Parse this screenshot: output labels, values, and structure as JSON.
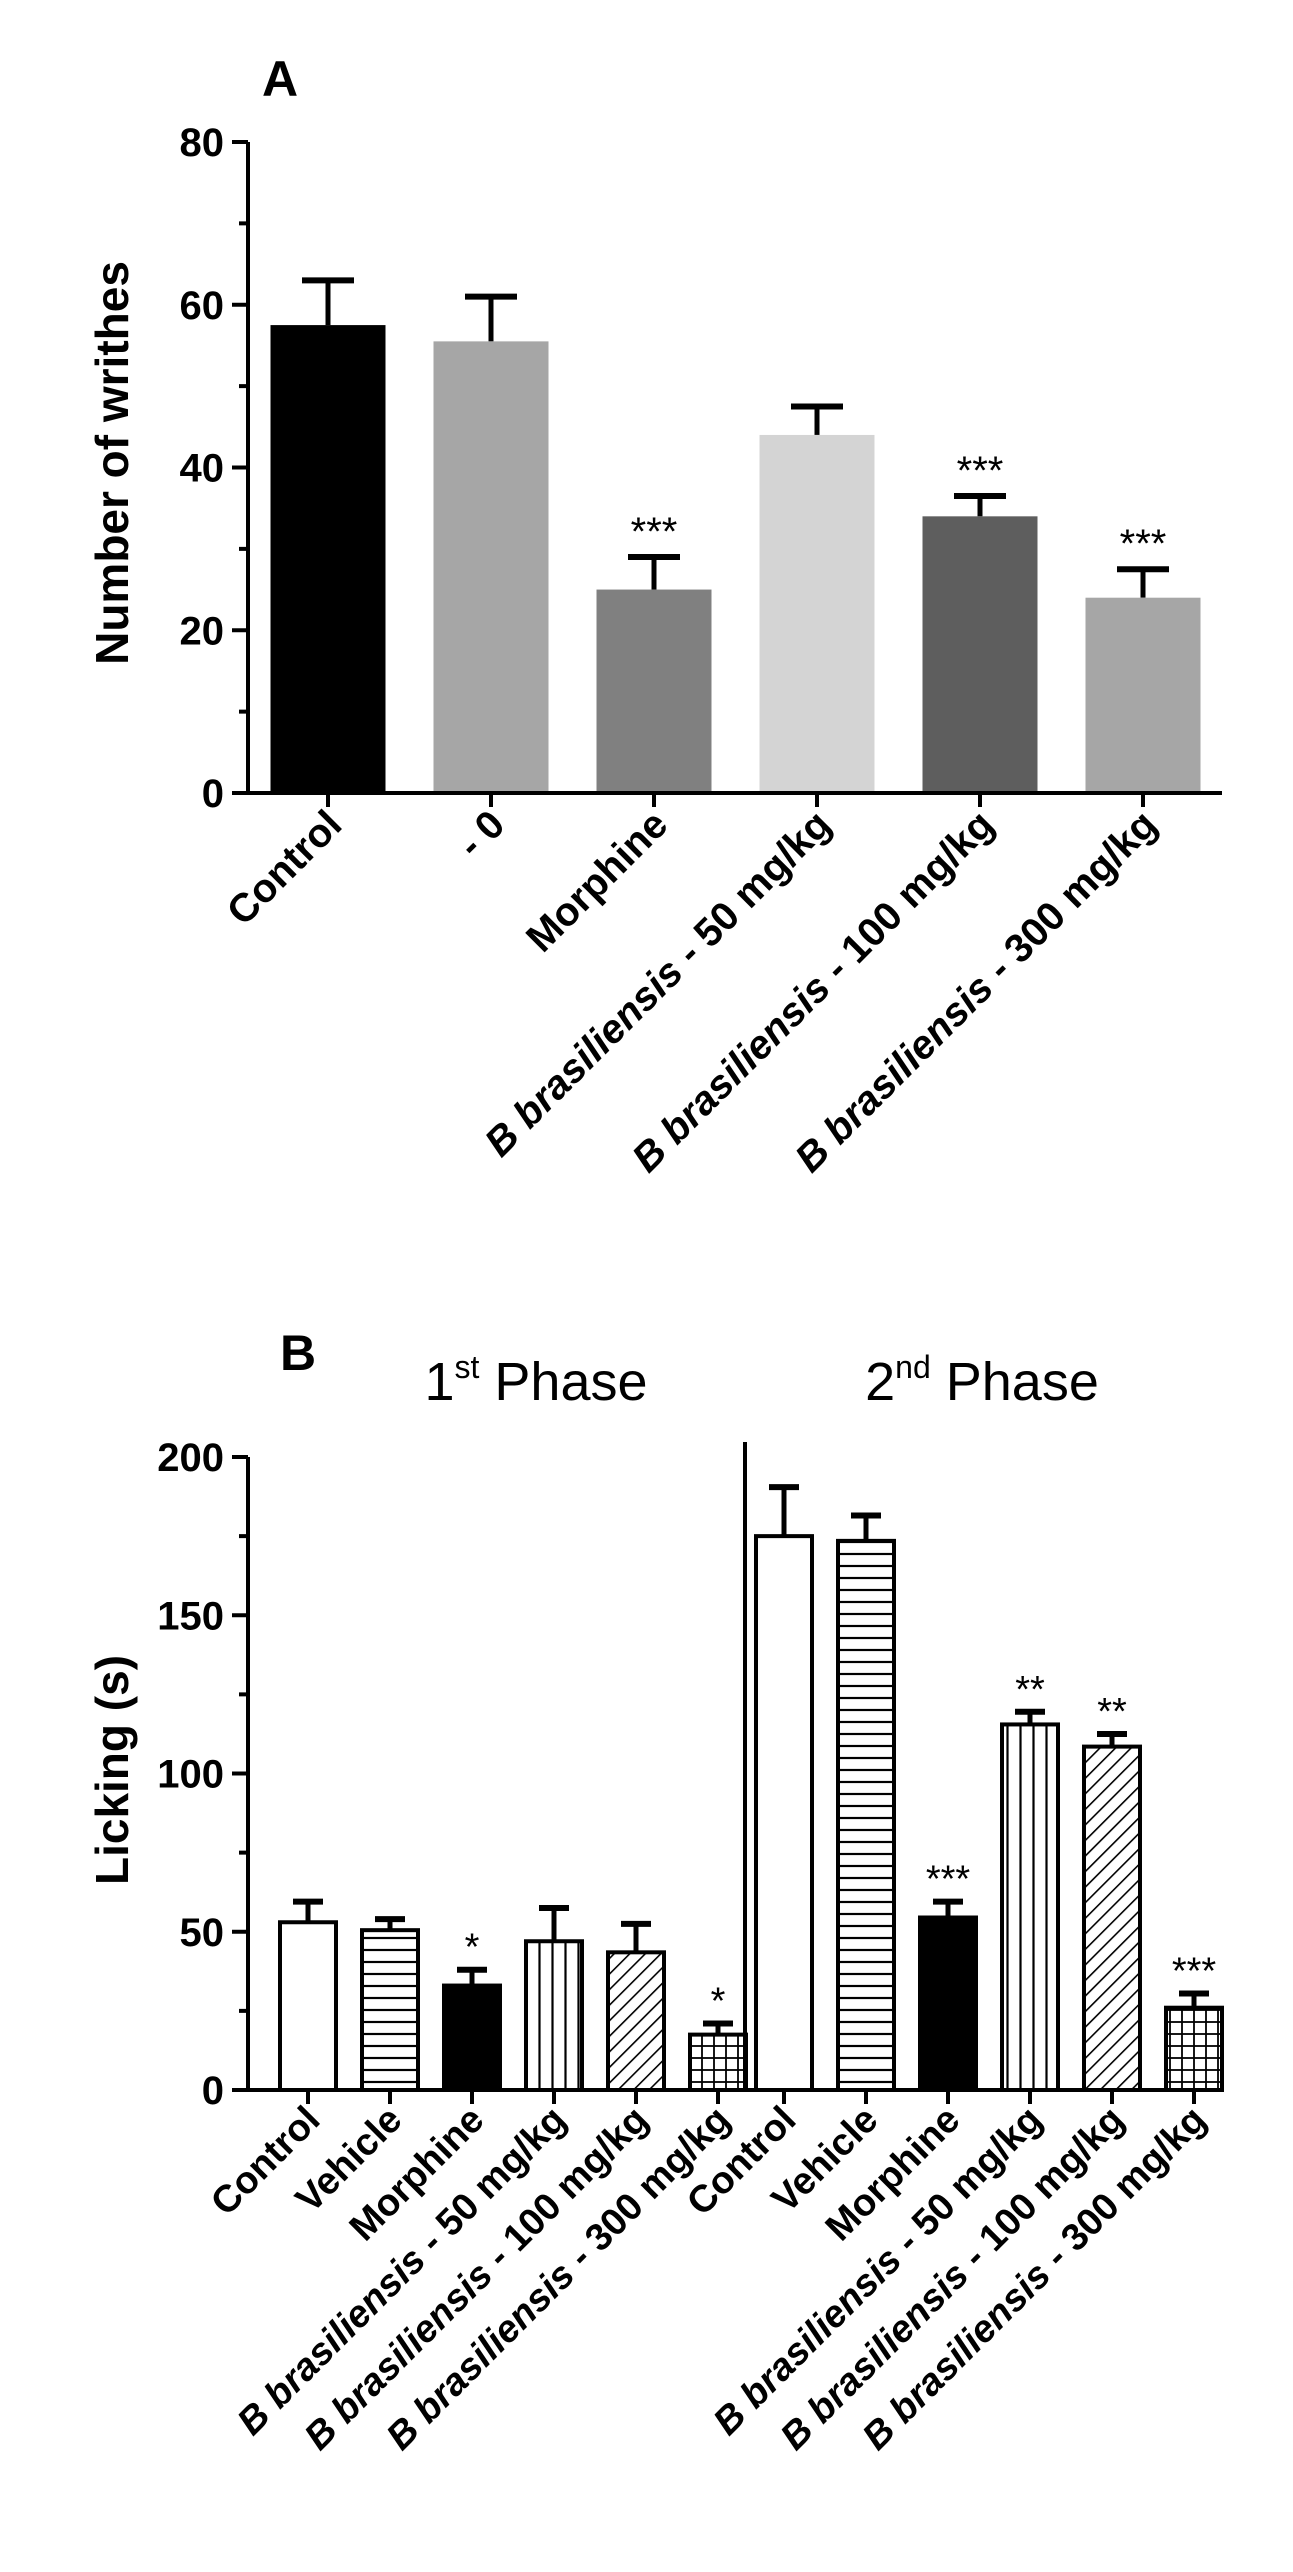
{
  "chart_data": [
    {
      "type": "bar",
      "panel_label": "A",
      "xlabel": "",
      "ylabel": "Number of writhes",
      "ylim": [
        0,
        80
      ],
      "yticks": [
        0,
        20,
        40,
        60,
        80
      ],
      "grid": false,
      "categories": [
        {
          "text": "Control",
          "italic_prefix": ""
        },
        {
          "text": " - 0",
          "italic_prefix": ""
        },
        {
          "text": "Morphine",
          "italic_prefix": ""
        },
        {
          "text": " - 50 mg/kg",
          "italic_prefix": "B brasiliensis"
        },
        {
          "text": " - 100 mg/kg",
          "italic_prefix": "B brasiliensis"
        },
        {
          "text": " - 300 mg/kg",
          "italic_prefix": "B brasiliensis"
        }
      ],
      "values": [
        57.5,
        55.5,
        25,
        44,
        34,
        24
      ],
      "errors": [
        5.5,
        5.5,
        4,
        3.5,
        2.5,
        3.5
      ],
      "significance": [
        "",
        "",
        "***",
        "",
        "***",
        "***"
      ],
      "colors": [
        "#000000",
        "#a6a6a6",
        "#808080",
        "#d4d4d4",
        "#5e5e5e",
        "#a6a6a6"
      ]
    },
    {
      "type": "bar",
      "panel_label": "B",
      "xlabel": "",
      "ylabel": "Licking (s)",
      "ylim": [
        0,
        200
      ],
      "yticks": [
        0,
        50,
        100,
        150,
        200
      ],
      "grid": false,
      "groups": [
        {
          "ordinal": "1",
          "superscript": "st",
          "title": " Phase"
        },
        {
          "ordinal": "2",
          "superscript": "nd",
          "title": " Phase"
        }
      ],
      "categories": [
        {
          "text": "Control",
          "italic_prefix": ""
        },
        {
          "text": "Vehicle",
          "italic_prefix": ""
        },
        {
          "text": "Morphine",
          "italic_prefix": ""
        },
        {
          "text": " - 50 mg/kg",
          "italic_prefix": "B brasiliensis"
        },
        {
          "text": " - 100 mg/kg",
          "italic_prefix": "B brasiliensis"
        },
        {
          "text": " - 300 mg/kg",
          "italic_prefix": "B brasiliensis"
        },
        {
          "text": "Control",
          "italic_prefix": ""
        },
        {
          "text": "Vehicle",
          "italic_prefix": ""
        },
        {
          "text": "Morphine",
          "italic_prefix": ""
        },
        {
          "text": " - 50 mg/kg",
          "italic_prefix": "B brasiliensis"
        },
        {
          "text": " - 100 mg/kg",
          "italic_prefix": "B brasiliensis"
        },
        {
          "text": " - 300 mg/kg",
          "italic_prefix": "B brasiliensis"
        }
      ],
      "values": [
        53,
        50.5,
        33,
        47,
        43.5,
        17.5,
        175,
        173.5,
        54.5,
        115.5,
        108.5,
        26
      ],
      "errors": [
        6.5,
        3.5,
        5,
        10.5,
        9,
        3.5,
        15.5,
        8,
        5,
        4,
        4,
        4.5
      ],
      "significance": [
        "",
        "",
        "*",
        "",
        "",
        "*",
        "",
        "",
        "***",
        "**",
        "**",
        "***"
      ],
      "patterns": [
        "open",
        "horizontal",
        "solid",
        "vertical",
        "diagonal",
        "grid",
        "open",
        "horizontal",
        "solid",
        "vertical",
        "diagonal",
        "grid"
      ]
    }
  ]
}
